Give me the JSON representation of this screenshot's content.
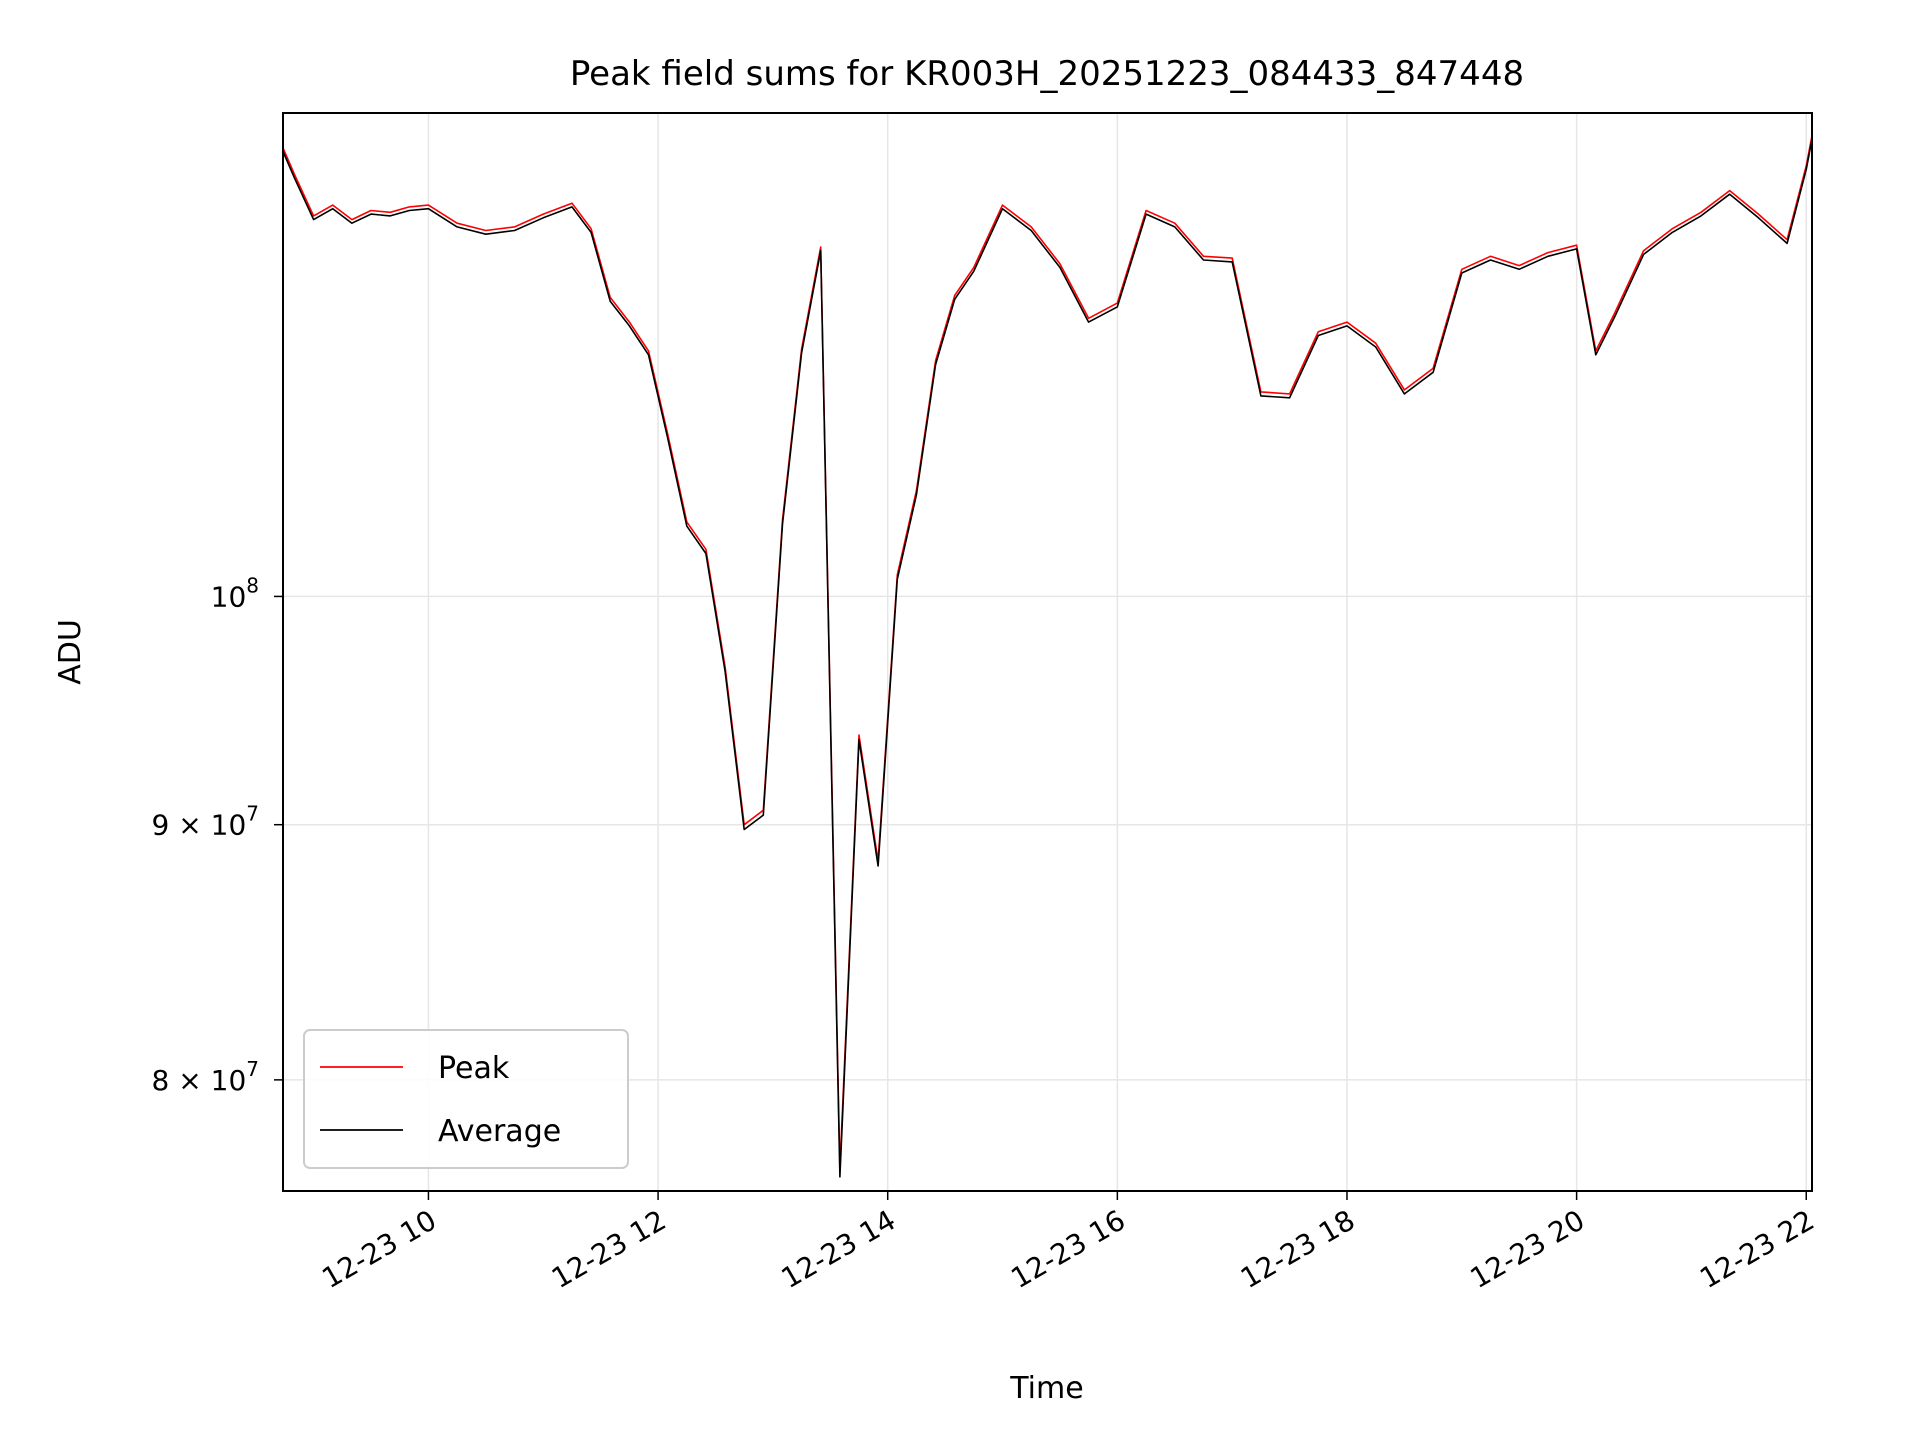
{
  "chart_data": {
    "type": "line",
    "title": "Peak field sums for KR003H_20251223_084433_847448",
    "xlabel": "Time",
    "ylabel": "ADU",
    "yscale": "log",
    "grid": true,
    "legend_position": "lower left",
    "xlim": [
      "2025-12-23 08:44",
      "2025-12-23 22:03"
    ],
    "ylim": [
      76000000,
      125000000
    ],
    "x_ticks": [
      {
        "value": "2025-12-23 10:00",
        "label": "12-23 10"
      },
      {
        "value": "2025-12-23 12:00",
        "label": "12-23 12"
      },
      {
        "value": "2025-12-23 14:00",
        "label": "12-23 14"
      },
      {
        "value": "2025-12-23 16:00",
        "label": "12-23 16"
      },
      {
        "value": "2025-12-23 18:00",
        "label": "12-23 18"
      },
      {
        "value": "2025-12-23 20:00",
        "label": "12-23 20"
      },
      {
        "value": "2025-12-23 22:00",
        "label": "12-23 22"
      }
    ],
    "y_ticks": [
      {
        "value": 80000000,
        "label": "8 × 10",
        "exp": "7"
      },
      {
        "value": 90000000,
        "label": "9 × 10",
        "exp": "7"
      },
      {
        "value": 100000000,
        "label": "10",
        "exp": "8"
      }
    ],
    "series": [
      {
        "name": "Peak",
        "color": "#ff0000",
        "x": [
          "2025-12-23 08:44",
          "2025-12-23 08:50",
          "2025-12-23 09:00",
          "2025-12-23 09:10",
          "2025-12-23 09:20",
          "2025-12-23 09:30",
          "2025-12-23 09:40",
          "2025-12-23 09:50",
          "2025-12-23 10:00",
          "2025-12-23 10:15",
          "2025-12-23 10:30",
          "2025-12-23 10:45",
          "2025-12-23 11:00",
          "2025-12-23 11:15",
          "2025-12-23 11:25",
          "2025-12-23 11:35",
          "2025-12-23 11:45",
          "2025-12-23 11:55",
          "2025-12-23 12:05",
          "2025-12-23 12:15",
          "2025-12-23 12:25",
          "2025-12-23 12:35",
          "2025-12-23 12:45",
          "2025-12-23 12:55",
          "2025-12-23 13:05",
          "2025-12-23 13:15",
          "2025-12-23 13:25",
          "2025-12-23 13:35",
          "2025-12-23 13:45",
          "2025-12-23 13:55",
          "2025-12-23 14:05",
          "2025-12-23 14:15",
          "2025-12-23 14:25",
          "2025-12-23 14:35",
          "2025-12-23 14:45",
          "2025-12-23 15:00",
          "2025-12-23 15:15",
          "2025-12-23 15:30",
          "2025-12-23 15:45",
          "2025-12-23 16:00",
          "2025-12-23 16:15",
          "2025-12-23 16:30",
          "2025-12-23 16:45",
          "2025-12-23 17:00",
          "2025-12-23 17:15",
          "2025-12-23 17:30",
          "2025-12-23 17:45",
          "2025-12-23 18:00",
          "2025-12-23 18:15",
          "2025-12-23 18:30",
          "2025-12-23 18:45",
          "2025-12-23 19:00",
          "2025-12-23 19:15",
          "2025-12-23 19:30",
          "2025-12-23 19:45",
          "2025-12-23 20:00",
          "2025-12-23 20:10",
          "2025-12-23 20:20",
          "2025-12-23 20:35",
          "2025-12-23 20:50",
          "2025-12-23 21:05",
          "2025-12-23 21:20",
          "2025-12-23 21:35",
          "2025-12-23 21:50",
          "2025-12-23 22:00",
          "2025-12-23 22:03"
        ],
        "values": [
          123000000,
          121500000,
          119200000,
          119800000,
          119000000,
          119500000,
          119400000,
          119700000,
          119800000,
          118800000,
          118400000,
          118600000,
          119300000,
          119900000,
          118500000,
          114800000,
          113500000,
          112000000,
          107800000,
          103500000,
          102200000,
          96800000,
          90000000,
          90600000,
          103600000,
          112100000,
          117500000,
          76800000,
          93800000,
          88500000,
          101000000,
          105000000,
          111500000,
          114900000,
          116400000,
          119800000,
          118600000,
          116600000,
          113700000,
          114500000,
          119500000,
          118800000,
          117000000,
          116900000,
          109900000,
          109800000,
          113000000,
          113500000,
          112400000,
          110000000,
          111100000,
          116300000,
          117000000,
          116500000,
          117200000,
          117600000,
          112000000,
          114000000,
          117300000,
          118500000,
          119400000,
          120600000,
          119300000,
          117900000,
          122000000,
          123700000
        ]
      },
      {
        "name": "Average",
        "color": "#000000",
        "x": [
          "2025-12-23 08:44",
          "2025-12-23 08:50",
          "2025-12-23 09:00",
          "2025-12-23 09:10",
          "2025-12-23 09:20",
          "2025-12-23 09:30",
          "2025-12-23 09:40",
          "2025-12-23 09:50",
          "2025-12-23 10:00",
          "2025-12-23 10:15",
          "2025-12-23 10:30",
          "2025-12-23 10:45",
          "2025-12-23 11:00",
          "2025-12-23 11:15",
          "2025-12-23 11:25",
          "2025-12-23 11:35",
          "2025-12-23 11:45",
          "2025-12-23 11:55",
          "2025-12-23 12:05",
          "2025-12-23 12:15",
          "2025-12-23 12:25",
          "2025-12-23 12:35",
          "2025-12-23 12:45",
          "2025-12-23 12:55",
          "2025-12-23 13:05",
          "2025-12-23 13:15",
          "2025-12-23 13:25",
          "2025-12-23 13:35",
          "2025-12-23 13:45",
          "2025-12-23 13:55",
          "2025-12-23 14:05",
          "2025-12-23 14:15",
          "2025-12-23 14:25",
          "2025-12-23 14:35",
          "2025-12-23 14:45",
          "2025-12-23 15:00",
          "2025-12-23 15:15",
          "2025-12-23 15:30",
          "2025-12-23 15:45",
          "2025-12-23 16:00",
          "2025-12-23 16:15",
          "2025-12-23 16:30",
          "2025-12-23 16:45",
          "2025-12-23 17:00",
          "2025-12-23 17:15",
          "2025-12-23 17:30",
          "2025-12-23 17:45",
          "2025-12-23 18:00",
          "2025-12-23 18:15",
          "2025-12-23 18:30",
          "2025-12-23 18:45",
          "2025-12-23 19:00",
          "2025-12-23 19:15",
          "2025-12-23 19:30",
          "2025-12-23 19:45",
          "2025-12-23 20:00",
          "2025-12-23 20:10",
          "2025-12-23 20:20",
          "2025-12-23 20:35",
          "2025-12-23 20:50",
          "2025-12-23 21:05",
          "2025-12-23 21:20",
          "2025-12-23 21:35",
          "2025-12-23 21:50",
          "2025-12-23 22:00",
          "2025-12-23 22:03"
        ],
        "values": [
          122800000,
          121300000,
          119000000,
          119600000,
          118800000,
          119300000,
          119200000,
          119500000,
          119600000,
          118600000,
          118200000,
          118400000,
          119100000,
          119700000,
          118300000,
          114600000,
          113300000,
          111800000,
          107600000,
          103300000,
          102000000,
          96600000,
          89800000,
          90400000,
          103400000,
          111900000,
          117300000,
          76500000,
          93600000,
          88300000,
          100800000,
          104800000,
          111300000,
          114700000,
          116200000,
          119600000,
          118400000,
          116400000,
          113500000,
          114300000,
          119300000,
          118600000,
          116800000,
          116700000,
          109700000,
          109600000,
          112800000,
          113300000,
          112200000,
          109800000,
          110900000,
          116100000,
          116800000,
          116300000,
          117000000,
          117400000,
          111800000,
          113800000,
          117100000,
          118300000,
          119200000,
          120400000,
          119100000,
          117700000,
          121800000,
          123500000
        ]
      }
    ]
  }
}
